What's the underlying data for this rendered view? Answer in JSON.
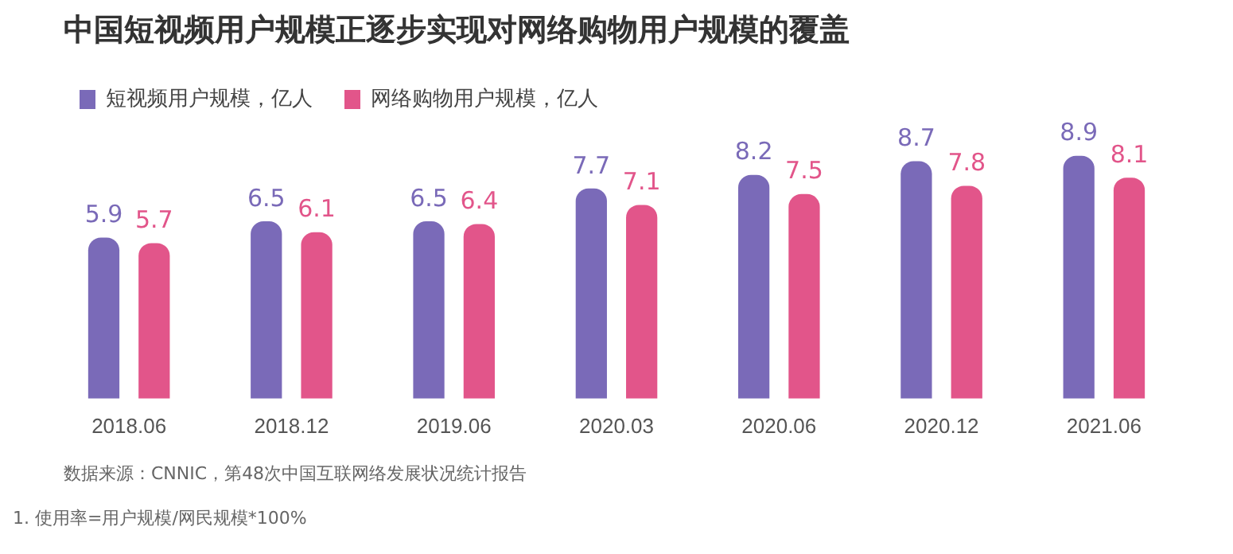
{
  "chart_data": {
    "type": "bar",
    "title": "中国短视频用户规模正逐步实现对网络购物用户规模的覆盖",
    "categories": [
      "2018.06",
      "2018.12",
      "2019.06",
      "2020.03",
      "2020.06",
      "2020.12",
      "2021.06"
    ],
    "series": [
      {
        "name": "短视频用户规模，亿人",
        "color": "#7a6ab8",
        "values": [
          5.9,
          6.5,
          6.5,
          7.7,
          8.2,
          8.7,
          8.9
        ]
      },
      {
        "name": "网络购物用户规模，亿人",
        "color": "#e2558a",
        "values": [
          5.7,
          6.1,
          6.4,
          7.1,
          7.5,
          7.8,
          8.1
        ]
      }
    ],
    "data_labels": true,
    "legend": "top left",
    "grid": false,
    "annotations": [
      "数据来源：CNNIC，第48次中国互联网络发展状况统计报告",
      "1. 使用率=用户规模/网民规模*100%"
    ]
  }
}
